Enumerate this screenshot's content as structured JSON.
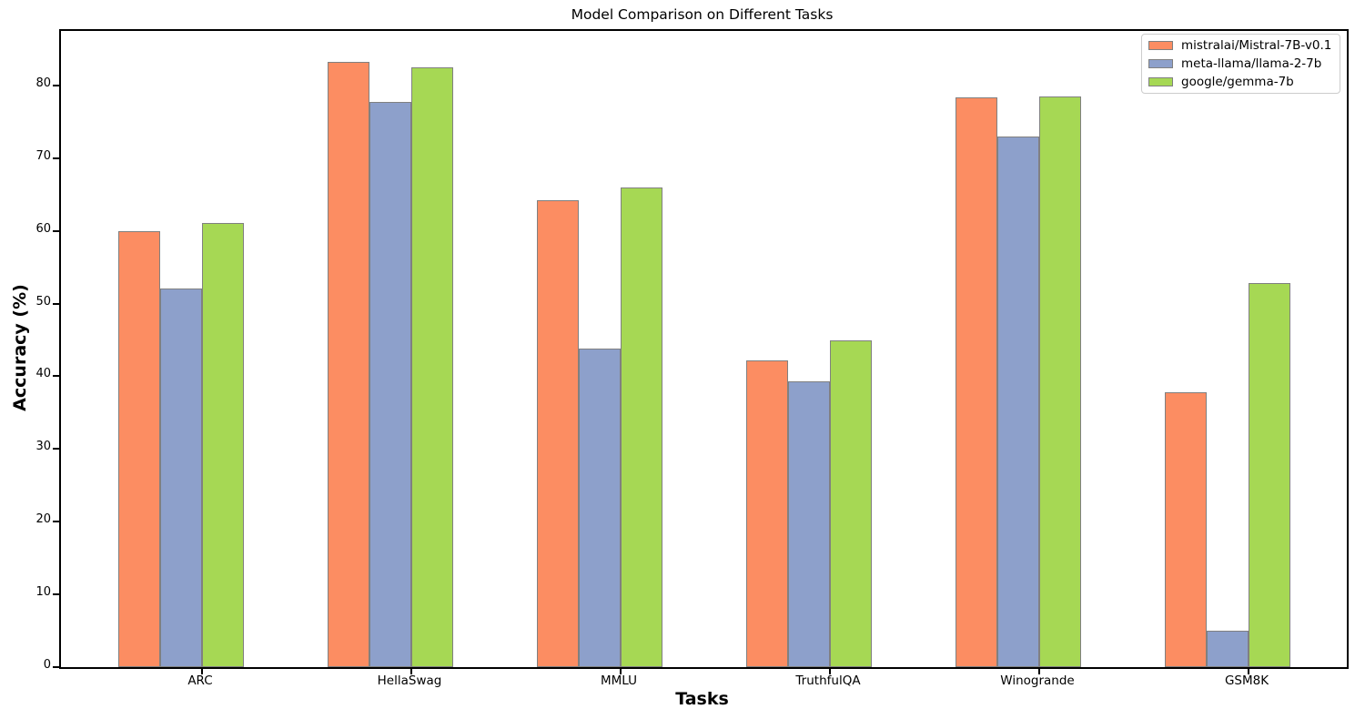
{
  "chart_data": {
    "type": "bar",
    "title": "Model Comparison on Different Tasks",
    "xlabel": "Tasks",
    "ylabel": "Accuracy (%)",
    "categories": [
      "ARC",
      "HellaSwag",
      "MMLU",
      "TruthfulQA",
      "Winogrande",
      "GSM8K"
    ],
    "series": [
      {
        "name": "mistralai/Mistral-7B-v0.1",
        "color": "#fc8d62",
        "values": [
          60.0,
          83.3,
          64.2,
          42.2,
          78.4,
          37.8
        ]
      },
      {
        "name": "meta-llama/llama-2-7b",
        "color": "#8da0cb",
        "values": [
          52.1,
          77.7,
          43.8,
          39.3,
          73.0,
          5.0
        ]
      },
      {
        "name": "google/gemma-7b",
        "color": "#a6d854",
        "values": [
          61.1,
          82.5,
          66.0,
          44.9,
          78.5,
          52.8
        ]
      }
    ],
    "y_ticks": [
      0,
      10,
      20,
      30,
      40,
      50,
      60,
      70,
      80
    ],
    "ylim": [
      0,
      87.5
    ],
    "bar_edge_color": "#808080",
    "legend_position": "upper right",
    "grid": false
  }
}
